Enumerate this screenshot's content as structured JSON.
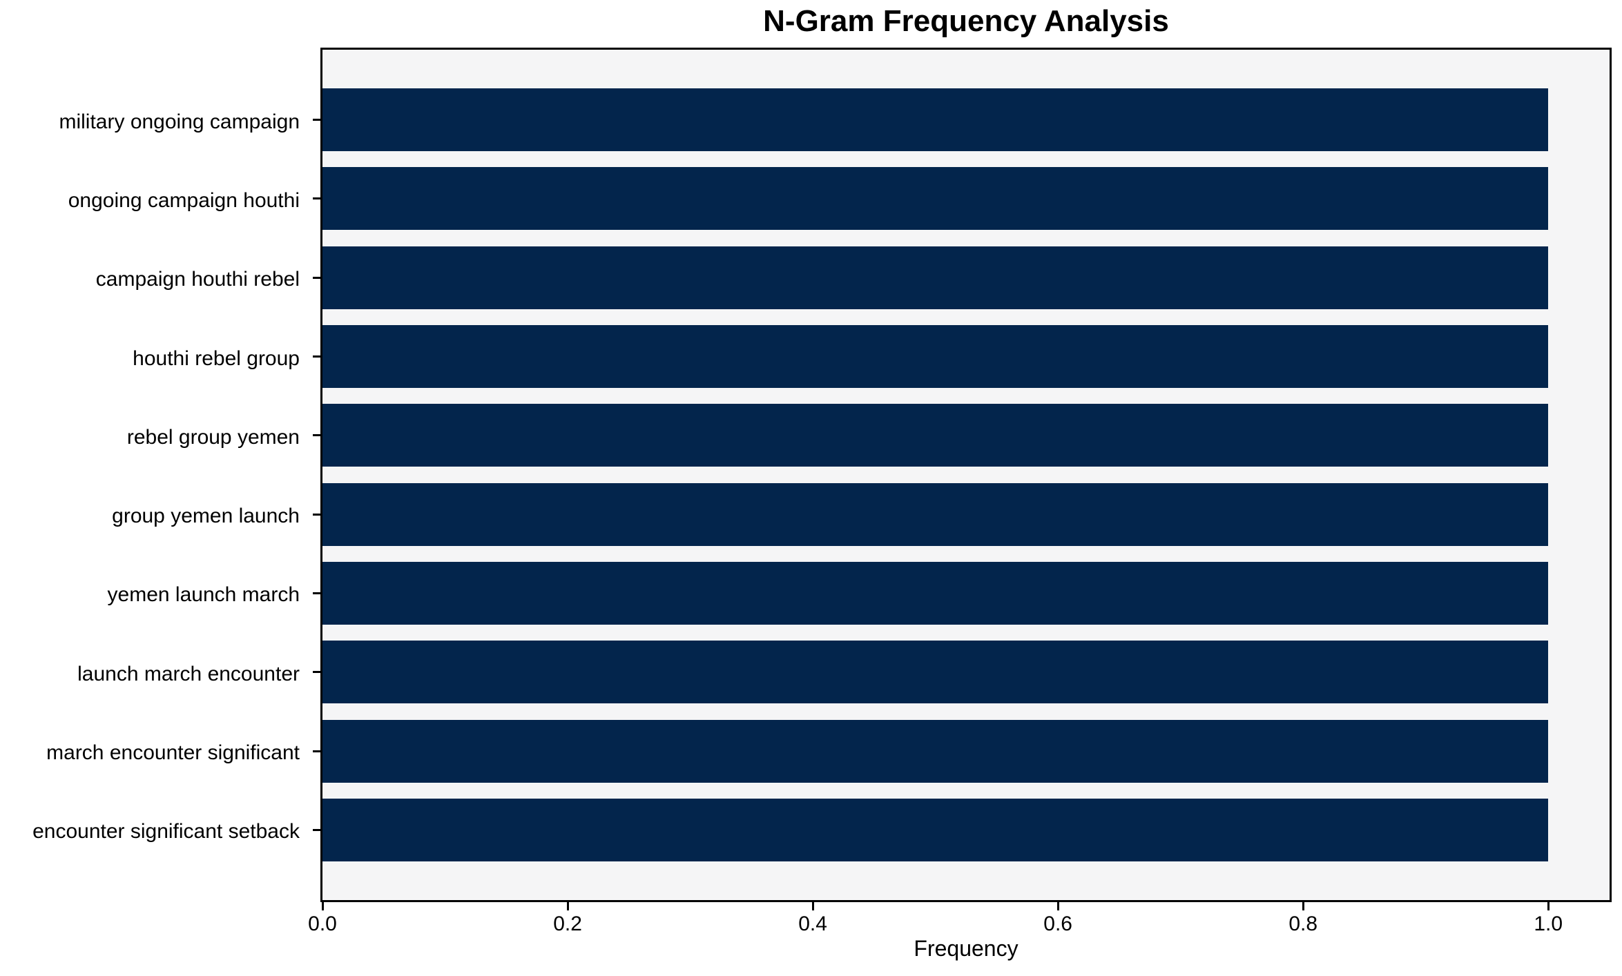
{
  "chart_data": {
    "type": "bar",
    "orientation": "horizontal",
    "title": "N-Gram Frequency Analysis",
    "xlabel": "Frequency",
    "ylabel": "",
    "categories": [
      "military ongoing campaign",
      "ongoing campaign houthi",
      "campaign houthi rebel",
      "houthi rebel group",
      "rebel group yemen",
      "group yemen launch",
      "yemen launch march",
      "launch march encounter",
      "march encounter significant",
      "encounter significant setback"
    ],
    "values": [
      1.0,
      1.0,
      1.0,
      1.0,
      1.0,
      1.0,
      1.0,
      1.0,
      1.0,
      1.0
    ],
    "xlim": [
      0,
      1.05
    ],
    "xticks": [
      0.0,
      0.2,
      0.4,
      0.6,
      0.8,
      1.0
    ],
    "xtick_labels": [
      "0.0",
      "0.2",
      "0.4",
      "0.6",
      "0.8",
      "1.0"
    ],
    "grid": false,
    "legend": null,
    "colors": {
      "bar": "#03254c",
      "plot_background": "#f5f5f6",
      "figure_background": "#ffffff",
      "axis": "#000000",
      "text": "#000000"
    }
  }
}
